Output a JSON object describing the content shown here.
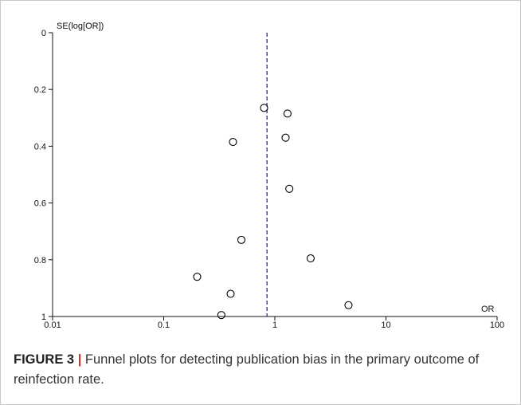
{
  "caption": {
    "label": "FIGURE 3",
    "separator": "|",
    "text": " Funnel plots for detecting publication bias in the primary outcome of reinfection rate."
  },
  "chart_data": {
    "type": "scatter",
    "title": "",
    "xlabel": "OR",
    "ylabel": "SE(log[OR])",
    "x_scale": "log",
    "xlim": [
      0.01,
      100
    ],
    "ylim": [
      1,
      0
    ],
    "y_axis_inverted": true,
    "x_ticks": [
      0.01,
      0.1,
      1,
      10,
      100
    ],
    "x_tick_labels": [
      "0.01",
      "0.1",
      "1",
      "10",
      "100"
    ],
    "y_ticks": [
      0,
      0.2,
      0.4,
      0.6,
      0.8,
      1
    ],
    "y_tick_labels": [
      "0",
      "0.2",
      "0.4",
      "0.6",
      "0.8",
      "1"
    ],
    "grid": false,
    "reference_line": {
      "x": 0.85,
      "style": "dashed",
      "color": "#2a2a8c"
    },
    "marker": {
      "shape": "open-circle",
      "color": "#000000"
    },
    "points": [
      {
        "x": 0.8,
        "y": 0.265
      },
      {
        "x": 1.3,
        "y": 0.285
      },
      {
        "x": 0.42,
        "y": 0.385
      },
      {
        "x": 1.25,
        "y": 0.37
      },
      {
        "x": 1.35,
        "y": 0.55
      },
      {
        "x": 0.5,
        "y": 0.73
      },
      {
        "x": 2.1,
        "y": 0.795
      },
      {
        "x": 0.2,
        "y": 0.86
      },
      {
        "x": 0.4,
        "y": 0.92
      },
      {
        "x": 4.6,
        "y": 0.96
      },
      {
        "x": 0.33,
        "y": 0.995
      }
    ]
  }
}
